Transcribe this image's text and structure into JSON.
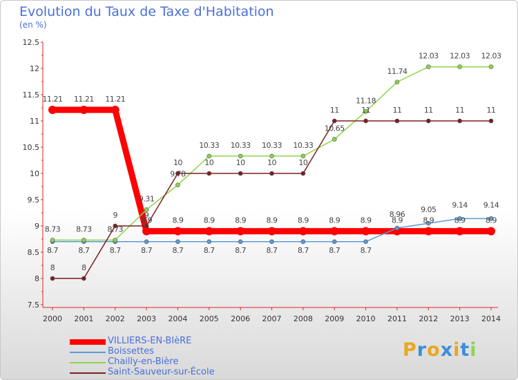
{
  "header": {
    "title": "Evolution du Taux de Taxe d'Habitation",
    "unit": "(en %)"
  },
  "chart_data": {
    "type": "line",
    "title": "Evolution du Taux de Taxe d'Habitation",
    "ylabel": "(en %)",
    "xlabel": "",
    "x": [
      "2000",
      "2001",
      "2002",
      "2003",
      "2004",
      "2005",
      "2006",
      "2007",
      "2008",
      "2009",
      "2010",
      "2011",
      "2012",
      "2013",
      "2014"
    ],
    "ylim": [
      7.5,
      12.5
    ],
    "yticks": [
      "7.5",
      "8",
      "8.5",
      "9",
      "9.5",
      "10",
      "10.5",
      "11",
      "11.5",
      "12",
      "12.5"
    ],
    "grid": false,
    "legend_position": "bottom-left",
    "series": [
      {
        "name": "VILLIERS-EN-BIèRE",
        "color": "#ff0000",
        "values": [
          11.21,
          11.21,
          11.21,
          8.9,
          8.9,
          8.9,
          8.9,
          8.9,
          8.9,
          8.9,
          8.9,
          8.9,
          8.9,
          8.9,
          8.9
        ],
        "labels": [
          "11.21",
          "11.21",
          "11.21",
          "8.9",
          "8.9",
          "8.9",
          "8.9",
          "8.9",
          "8.9",
          "8.9",
          "8.9",
          "8.9",
          "8.9",
          "8.9",
          "8.9"
        ]
      },
      {
        "name": "Boissettes",
        "color": "#5b9bd5",
        "values": [
          8.7,
          8.7,
          8.7,
          8.7,
          8.7,
          8.7,
          8.7,
          8.7,
          8.7,
          8.7,
          8.7,
          8.96,
          9.05,
          9.14,
          9.14
        ],
        "labels": [
          "8.7",
          "8.7",
          "8.7",
          "8.7",
          "8.7",
          "8.7",
          "8.7",
          "8.7",
          "8.7",
          "8.7",
          "8.7",
          "8.96",
          "9.05",
          "9.14",
          "9.14"
        ]
      },
      {
        "name": "Chailly-en-Bière",
        "color": "#8ed44c",
        "values": [
          8.73,
          8.73,
          8.73,
          9.31,
          9.78,
          10.33,
          10.33,
          10.33,
          10.33,
          10.65,
          11.18,
          11.74,
          12.03,
          12.03,
          12.03
        ],
        "labels": [
          "8.73",
          "8.73",
          "8.73",
          "9.31",
          "9.78",
          "10.33",
          "10.33",
          "10.33",
          "10.33",
          "10.65",
          "11.18",
          "11.74",
          "12.03",
          "12.03",
          "12.03"
        ]
      },
      {
        "name": "Saint-Sauveur-sur-École",
        "color": "#7b1e1e",
        "values": [
          8,
          8,
          9,
          9,
          10,
          10,
          10,
          10,
          10,
          11,
          11,
          11,
          11,
          11,
          11
        ],
        "labels": [
          "8",
          "8",
          "9",
          "9",
          "10",
          "10",
          "10",
          "10",
          "10",
          "11",
          "11",
          "11",
          "11",
          "11",
          "11"
        ]
      }
    ]
  },
  "logo": {
    "letters": [
      "P",
      "r",
      "o",
      "x",
      "i",
      "t",
      "i"
    ],
    "colors": [
      "#e8a820",
      "#3a8fd8",
      "#e8a820",
      "#3a8fd8",
      "#e8a820",
      "#3a8fd8",
      "#8ed44c"
    ]
  }
}
